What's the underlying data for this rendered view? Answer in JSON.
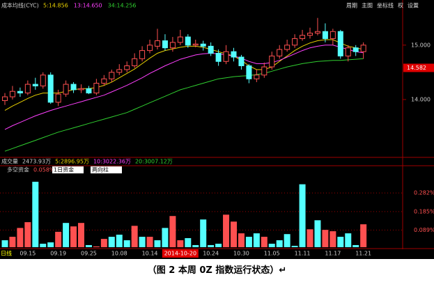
{
  "chart_data": [
    {
      "type": "candlestick",
      "title": "成本均线(CYC)",
      "toolbar": [
        "周期",
        "主图",
        "坐标线",
        "权",
        "设置"
      ],
      "up_color": "#ff5050",
      "down_color": "#54ffff",
      "open": [
        13.98,
        14.05,
        14.15,
        14.12,
        14.28,
        14.25,
        14.45,
        13.95,
        14.1,
        14.28,
        14.18,
        14.2,
        14.12,
        14.3,
        14.38,
        14.5,
        14.55,
        14.62,
        14.75,
        14.9,
        14.98,
        15.08,
        14.95,
        15.05,
        15.15,
        15.0,
        15.02,
        14.98,
        14.85,
        14.7,
        14.88,
        14.78,
        14.62,
        14.38,
        14.45,
        14.6,
        14.8,
        14.92,
        15.0,
        15.12,
        15.18,
        15.22,
        15.25,
        15.12,
        15.25,
        14.8,
        14.95,
        14.88
      ],
      "close": [
        14.05,
        14.15,
        14.12,
        14.28,
        14.25,
        14.45,
        13.95,
        14.1,
        14.28,
        14.18,
        14.2,
        14.12,
        14.3,
        14.38,
        14.5,
        14.55,
        14.62,
        14.75,
        14.9,
        15.0,
        15.08,
        14.95,
        15.05,
        15.15,
        15.0,
        15.02,
        14.98,
        14.85,
        14.7,
        14.88,
        14.78,
        14.62,
        14.38,
        14.45,
        14.6,
        14.8,
        14.92,
        15.0,
        15.12,
        15.18,
        15.22,
        15.25,
        15.12,
        15.25,
        14.8,
        14.95,
        14.88,
        15.0
      ],
      "high": [
        14.12,
        14.25,
        14.22,
        14.35,
        14.4,
        14.5,
        14.5,
        14.18,
        14.35,
        14.32,
        14.28,
        14.25,
        14.38,
        14.45,
        14.55,
        14.65,
        14.7,
        14.85,
        14.98,
        15.1,
        15.3,
        15.2,
        15.15,
        15.28,
        15.2,
        15.1,
        15.08,
        15.05,
        14.92,
        15.0,
        14.95,
        14.82,
        14.65,
        14.55,
        14.68,
        14.88,
        15.0,
        15.1,
        15.2,
        15.28,
        15.32,
        15.5,
        15.4,
        15.3,
        15.28,
        15.0,
        15.0,
        15.05
      ],
      "low": [
        13.9,
        14.0,
        14.05,
        14.08,
        14.18,
        14.2,
        13.92,
        13.88,
        14.05,
        14.12,
        14.12,
        14.1,
        14.08,
        14.25,
        14.32,
        14.45,
        14.5,
        14.58,
        14.7,
        14.85,
        14.92,
        14.9,
        14.88,
        15.0,
        14.95,
        14.96,
        14.9,
        14.8,
        14.62,
        14.65,
        14.7,
        14.55,
        14.3,
        14.32,
        14.4,
        14.55,
        14.75,
        14.88,
        14.95,
        15.08,
        15.12,
        15.18,
        15.05,
        15.0,
        14.75,
        14.7,
        14.8,
        14.75
      ],
      "series": [
        {
          "name": "5:14.856",
          "color": "#e8d000",
          "values": [
            13.8,
            13.88,
            13.95,
            14.02,
            14.08,
            14.12,
            14.12,
            14.12,
            14.15,
            14.18,
            14.2,
            14.2,
            14.22,
            14.26,
            14.32,
            14.4,
            14.48,
            14.56,
            14.66,
            14.76,
            14.85,
            14.9,
            14.93,
            14.96,
            14.98,
            14.98,
            14.96,
            14.92,
            14.88,
            14.84,
            14.8,
            14.72,
            14.62,
            14.55,
            14.55,
            14.6,
            14.7,
            14.8,
            14.9,
            14.98,
            15.04,
            15.08,
            15.1,
            15.1,
            15.04,
            14.98,
            14.95,
            14.92
          ]
        },
        {
          "name": "13:14.650",
          "color": "#ff40ff",
          "values": [
            13.45,
            13.52,
            13.58,
            13.64,
            13.7,
            13.75,
            13.8,
            13.84,
            13.88,
            13.92,
            13.96,
            14.0,
            14.04,
            14.08,
            14.14,
            14.2,
            14.26,
            14.33,
            14.4,
            14.48,
            14.55,
            14.62,
            14.68,
            14.74,
            14.78,
            14.82,
            14.84,
            14.85,
            14.84,
            14.82,
            14.8,
            14.76,
            14.7,
            14.66,
            14.66,
            14.68,
            14.72,
            14.78,
            14.84,
            14.9,
            14.95,
            14.98,
            15.0,
            15.0,
            14.96,
            14.92,
            14.88,
            14.86
          ]
        },
        {
          "name": "34:14.256",
          "color": "#30d030",
          "values": [
            13.05,
            13.1,
            13.15,
            13.2,
            13.25,
            13.3,
            13.35,
            13.4,
            13.44,
            13.48,
            13.52,
            13.56,
            13.6,
            13.64,
            13.68,
            13.72,
            13.76,
            13.82,
            13.88,
            13.94,
            14.0,
            14.06,
            14.12,
            14.18,
            14.22,
            14.26,
            14.3,
            14.34,
            14.38,
            14.4,
            14.42,
            14.43,
            14.44,
            14.46,
            14.48,
            14.52,
            14.56,
            14.6,
            14.63,
            14.66,
            14.68,
            14.7,
            14.71,
            14.72,
            14.72,
            14.73,
            14.74,
            14.75
          ]
        }
      ],
      "ylim": [
        12.95,
        15.65
      ],
      "yticks": [
        {
          "value": 15,
          "label": "15.000"
        },
        {
          "value": 14,
          "label": "14.000"
        }
      ],
      "cursor_price": 14.582
    },
    {
      "type": "bar",
      "title": "多空资金",
      "current": "0.058%",
      "selectors": [
        "1日资金",
        "两向柱"
      ],
      "volume_header": [
        "成交量",
        "2473.93万",
        "5:2896.95万",
        "10:3022.36万",
        "20:3007.12万"
      ],
      "period": "日线",
      "categories": [
        null,
        null,
        null,
        "09.15",
        null,
        null,
        null,
        "09.19",
        null,
        null,
        null,
        "09.25",
        null,
        null,
        null,
        "10.08",
        null,
        null,
        null,
        "10.14",
        null,
        null,
        null,
        "2014-10-20",
        null,
        null,
        null,
        "10.24",
        null,
        null,
        null,
        "10.30",
        null,
        null,
        null,
        "11.05",
        null,
        null,
        null,
        "11.11",
        null,
        null,
        null,
        "11.17",
        null,
        null,
        null,
        "11.21"
      ],
      "highlight": 23,
      "values": [
        0.036,
        0.054,
        0.1,
        0.13,
        0.34,
        0.018,
        0.025,
        0.08,
        0.126,
        0.108,
        0.126,
        0.011,
        0.004,
        0.043,
        0.054,
        0.065,
        0.036,
        0.111,
        0.054,
        0.054,
        0.036,
        0.1,
        0.162,
        0.036,
        0.047,
        0.011,
        0.144,
        0.011,
        0.018,
        0.169,
        0.133,
        0.072,
        0.054,
        0.072,
        0.054,
        0.018,
        0.036,
        0.068,
        0.007,
        0.327,
        0.093,
        0.14,
        0.09,
        0.083,
        0.054,
        0.072,
        0.011,
        0.119
      ],
      "colors": [
        "#54ffff",
        "#ff5050",
        "#ff5050",
        "#ff5050",
        "#54ffff",
        "#54ffff",
        "#54ffff",
        "#ff5050",
        "#54ffff",
        "#ff5050",
        "#ff5050",
        "#54ffff",
        "#ff5050",
        "#ff5050",
        "#54ffff",
        "#54ffff",
        "#54ffff",
        "#ff5050",
        "#54ffff",
        "#ff5050",
        "#54ffff",
        "#54ffff",
        "#ff5050",
        "#ff5050",
        "#54ffff",
        "#54ffff",
        "#54ffff",
        "#54ffff",
        "#54ffff",
        "#ff5050",
        "#ff5050",
        "#ff5050",
        "#54ffff",
        "#54ffff",
        "#ff5050",
        "#54ffff",
        "#54ffff",
        "#54ffff",
        "#54ffff",
        "#54ffff",
        "#ff5050",
        "#54ffff",
        "#ff5050",
        "#ff5050",
        "#54ffff",
        "#54ffff",
        "#54ffff",
        "#ff5050"
      ],
      "ylim": [
        0,
        0.38
      ],
      "yticks": [
        {
          "value": 0.282,
          "label": "0.282%"
        },
        {
          "value": 0.185,
          "label": "0.185%"
        },
        {
          "value": 0.089,
          "label": "0.089%"
        }
      ]
    }
  ],
  "caption": "（图 2 本周 0Z 指数运行状态）↵"
}
